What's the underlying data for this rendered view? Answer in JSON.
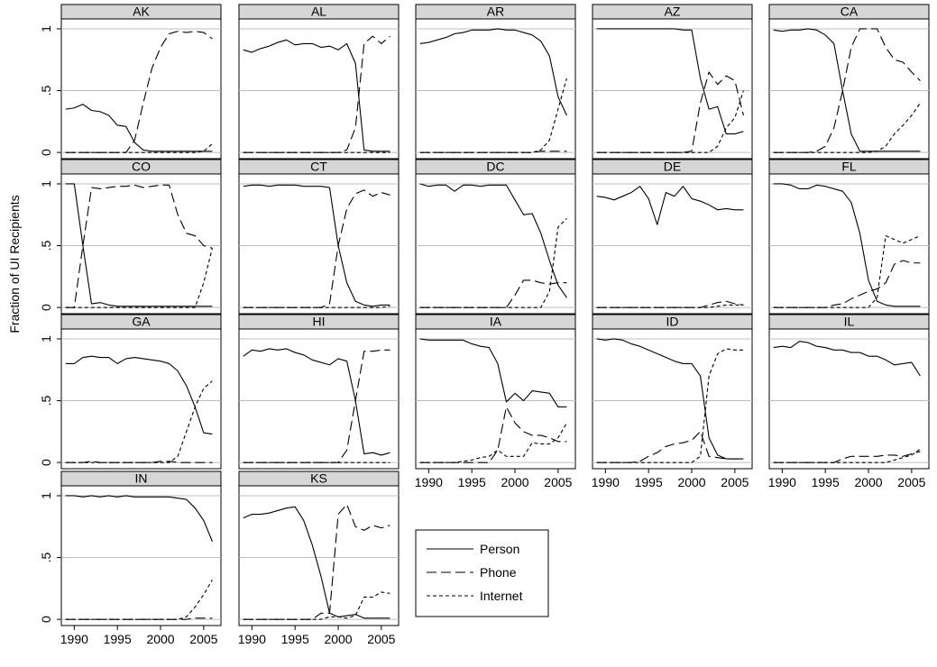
{
  "chart_data": {
    "type": "line",
    "ylabel": "Fraction of UI Recipients",
    "x_ticks": [
      "1990",
      "1995",
      "2000",
      "2005"
    ],
    "y_ticks": [
      "0",
      ".5",
      "1"
    ],
    "xlim": [
      1988.5,
      2007
    ],
    "ylim": [
      -0.05,
      1.08
    ],
    "grid": "horizontal",
    "legend_position": "right of bottom row",
    "legend": [
      {
        "name": "Person",
        "dash": "solid"
      },
      {
        "name": "Phone",
        "dash": "long-dash"
      },
      {
        "name": "Internet",
        "dash": "short-dash"
      }
    ],
    "x": [
      1989,
      1990,
      1991,
      1992,
      1993,
      1994,
      1995,
      1996,
      1997,
      1998,
      1999,
      2000,
      2001,
      2002,
      2003,
      2004,
      2005,
      2006
    ],
    "panels": [
      {
        "title": "AK",
        "series": {
          "Person": [
            0.35,
            0.36,
            0.39,
            0.34,
            0.33,
            0.3,
            0.22,
            0.21,
            0.08,
            0.02,
            0.01,
            0.01,
            0.01,
            0.01,
            0.01,
            0.01,
            0.01,
            0.01
          ],
          "Phone": [
            0,
            0,
            0,
            0,
            0,
            0,
            0,
            0,
            0.1,
            0.4,
            0.68,
            0.85,
            0.96,
            0.98,
            0.97,
            0.98,
            0.97,
            0.92
          ],
          "Internet": [
            0,
            0,
            0,
            0,
            0,
            0,
            0,
            0,
            0,
            0,
            0,
            0,
            0,
            0,
            0,
            0,
            0.01,
            0.07
          ]
        }
      },
      {
        "title": "AL",
        "series": {
          "Person": [
            0.83,
            0.81,
            0.84,
            0.86,
            0.89,
            0.91,
            0.87,
            0.88,
            0.88,
            0.85,
            0.86,
            0.83,
            0.88,
            0.72,
            0.02,
            0.01,
            0.01,
            0.01
          ],
          "Phone": [
            0,
            0,
            0,
            0,
            0,
            0,
            0,
            0,
            0,
            0,
            0,
            0,
            0.02,
            0.2,
            0.88,
            0.94,
            0.88,
            0.94
          ],
          "Internet": [
            0,
            0,
            0,
            0,
            0,
            0,
            0,
            0,
            0,
            0,
            0,
            0,
            0,
            0,
            0,
            0,
            0,
            0
          ]
        }
      },
      {
        "title": "AR",
        "series": {
          "Person": [
            0.88,
            0.89,
            0.91,
            0.93,
            0.96,
            0.97,
            0.99,
            0.99,
            0.99,
            1.0,
            0.99,
            0.99,
            0.97,
            0.95,
            0.9,
            0.78,
            0.45,
            0.3
          ],
          "Phone": [
            0,
            0,
            0,
            0,
            0,
            0,
            0,
            0,
            0,
            0,
            0,
            0,
            0,
            0,
            0.01,
            0.01,
            0.01,
            0.01
          ],
          "Internet": [
            0,
            0,
            0,
            0,
            0,
            0,
            0,
            0,
            0,
            0,
            0,
            0,
            0,
            0,
            0.02,
            0.1,
            0.35,
            0.6
          ]
        }
      },
      {
        "title": "AZ",
        "series": {
          "Person": [
            1.0,
            1.0,
            1.0,
            1.0,
            1.0,
            1.0,
            1.0,
            1.0,
            1.0,
            1.0,
            0.99,
            0.99,
            0.6,
            0.35,
            0.37,
            0.15,
            0.15,
            0.17
          ],
          "Phone": [
            0,
            0,
            0,
            0,
            0,
            0,
            0,
            0,
            0,
            0,
            0,
            0.01,
            0.4,
            0.65,
            0.55,
            0.62,
            0.58,
            0.3
          ],
          "Internet": [
            0,
            0,
            0,
            0,
            0,
            0,
            0,
            0,
            0,
            0,
            0,
            0,
            0,
            0,
            0.05,
            0.2,
            0.28,
            0.5
          ]
        }
      },
      {
        "title": "CA",
        "series": {
          "Person": [
            0.99,
            0.98,
            0.99,
            0.99,
            1.0,
            0.99,
            0.95,
            0.88,
            0.5,
            0.15,
            0.01,
            0.01,
            0.01,
            0.01,
            0.01,
            0.01,
            0.01,
            0.01
          ],
          "Phone": [
            0,
            0,
            0,
            0,
            0,
            0.01,
            0.05,
            0.2,
            0.5,
            0.85,
            1.0,
            1.0,
            1.0,
            0.85,
            0.75,
            0.73,
            0.65,
            0.58
          ],
          "Internet": [
            0,
            0,
            0,
            0,
            0,
            0,
            0,
            0,
            0,
            0,
            0,
            0,
            0.01,
            0.05,
            0.15,
            0.22,
            0.3,
            0.4
          ]
        }
      },
      {
        "title": "CO",
        "series": {
          "Person": [
            1.0,
            1.0,
            0.5,
            0.03,
            0.04,
            0.02,
            0.01,
            0.01,
            0.01,
            0.01,
            0.01,
            0.01,
            0.01,
            0.01,
            0.01,
            0.01,
            0.01,
            0.01
          ],
          "Phone": [
            0,
            0,
            0.5,
            0.97,
            0.96,
            0.97,
            0.98,
            0.98,
            0.99,
            0.97,
            0.98,
            0.99,
            0.99,
            0.75,
            0.6,
            0.58,
            0.5,
            0.48
          ],
          "Internet": [
            0,
            0,
            0,
            0,
            0,
            0,
            0,
            0,
            0,
            0,
            0,
            0,
            0,
            0,
            0,
            0,
            0.2,
            0.48
          ]
        }
      },
      {
        "title": "CT",
        "series": {
          "Person": [
            0.98,
            0.99,
            0.99,
            0.98,
            0.99,
            0.99,
            0.99,
            0.98,
            0.98,
            0.98,
            0.97,
            0.5,
            0.2,
            0.05,
            0.02,
            0.01,
            0.02,
            0.02
          ],
          "Phone": [
            0,
            0,
            0,
            0,
            0,
            0,
            0,
            0,
            0,
            0,
            0.03,
            0.5,
            0.8,
            0.92,
            0.95,
            0.9,
            0.93,
            0.91
          ],
          "Internet": [
            0,
            0,
            0,
            0,
            0,
            0,
            0,
            0,
            0,
            0,
            0,
            0,
            0,
            0,
            0,
            0,
            0,
            0.01
          ]
        }
      },
      {
        "title": "DC",
        "series": {
          "Person": [
            1.0,
            0.98,
            0.99,
            0.99,
            0.94,
            0.99,
            0.99,
            0.98,
            0.99,
            0.99,
            0.99,
            0.87,
            0.75,
            0.76,
            0.6,
            0.38,
            0.18,
            0.08
          ],
          "Phone": [
            0,
            0,
            0,
            0,
            0,
            0,
            0,
            0,
            0,
            0,
            0,
            0.1,
            0.22,
            0.22,
            0.2,
            0.19,
            0.2,
            0.2
          ],
          "Internet": [
            0,
            0,
            0,
            0,
            0,
            0,
            0,
            0,
            0,
            0,
            0,
            0,
            0,
            0,
            0,
            0.13,
            0.65,
            0.72
          ]
        }
      },
      {
        "title": "DE",
        "series": {
          "Person": [
            0.9,
            0.89,
            0.87,
            0.9,
            0.93,
            0.98,
            0.88,
            0.67,
            0.93,
            0.9,
            0.98,
            0.88,
            0.86,
            0.83,
            0.79,
            0.8,
            0.79,
            0.79
          ],
          "Phone": [
            0,
            0,
            0,
            0,
            0,
            0,
            0,
            0,
            0,
            0,
            0,
            0,
            0,
            0.02,
            0.04,
            0.05,
            0.03,
            0.02
          ],
          "Internet": [
            0,
            0,
            0,
            0,
            0,
            0,
            0,
            0,
            0,
            0,
            0,
            0,
            0,
            0,
            0.01,
            0.02,
            0.02,
            0.02
          ]
        }
      },
      {
        "title": "FL",
        "series": {
          "Person": [
            1.0,
            1.0,
            0.99,
            0.96,
            0.96,
            0.99,
            0.98,
            0.96,
            0.94,
            0.85,
            0.6,
            0.22,
            0.05,
            0.02,
            0.01,
            0.01,
            0.01,
            0.01
          ],
          "Phone": [
            0,
            0,
            0,
            0,
            0,
            0,
            0,
            0.02,
            0.03,
            0.07,
            0.1,
            0.13,
            0.15,
            0.2,
            0.35,
            0.38,
            0.36,
            0.36
          ],
          "Internet": [
            0,
            0,
            0,
            0,
            0,
            0,
            0,
            0,
            0,
            0,
            0,
            0,
            0.08,
            0.58,
            0.55,
            0.52,
            0.55,
            0.58
          ]
        }
      },
      {
        "title": "GA",
        "series": {
          "Person": [
            0.8,
            0.8,
            0.85,
            0.86,
            0.85,
            0.85,
            0.8,
            0.84,
            0.85,
            0.84,
            0.83,
            0.82,
            0.8,
            0.74,
            0.62,
            0.45,
            0.24,
            0.23
          ],
          "Phone": [
            0,
            0,
            0,
            0.01,
            0,
            0,
            0,
            0,
            0,
            0,
            0,
            0.01,
            0.01,
            0,
            0,
            0,
            0,
            0
          ],
          "Internet": [
            0,
            0,
            0,
            0,
            0,
            0,
            0,
            0,
            0,
            0,
            0,
            0,
            0,
            0.05,
            0.25,
            0.45,
            0.6,
            0.66
          ]
        }
      },
      {
        "title": "HI",
        "series": {
          "Person": [
            0.86,
            0.91,
            0.9,
            0.92,
            0.91,
            0.92,
            0.89,
            0.87,
            0.83,
            0.81,
            0.79,
            0.84,
            0.82,
            0.5,
            0.07,
            0.08,
            0.06,
            0.08
          ],
          "Phone": [
            0,
            0,
            0,
            0,
            0,
            0,
            0,
            0,
            0,
            0,
            0,
            0,
            0.1,
            0.5,
            0.9,
            0.9,
            0.91,
            0.91
          ],
          "Internet": [
            0,
            0,
            0,
            0,
            0,
            0,
            0,
            0,
            0,
            0,
            0,
            0,
            0,
            0,
            0,
            0,
            0,
            0
          ]
        }
      },
      {
        "title": "IA",
        "series": {
          "Person": [
            1.0,
            0.99,
            0.99,
            0.99,
            0.99,
            0.99,
            0.96,
            0.94,
            0.93,
            0.8,
            0.49,
            0.56,
            0.5,
            0.58,
            0.57,
            0.56,
            0.45,
            0.45
          ],
          "Phone": [
            0,
            0,
            0,
            0,
            0,
            0,
            0,
            0,
            0,
            0.1,
            0.45,
            0.32,
            0.25,
            0.22,
            0.22,
            0.2,
            0.17,
            0.17
          ],
          "Internet": [
            0,
            0,
            0,
            0,
            0,
            0.01,
            0.02,
            0.04,
            0.05,
            0.1,
            0.05,
            0.05,
            0.05,
            0.16,
            0.15,
            0.15,
            0.2,
            0.32
          ]
        }
      },
      {
        "title": "ID",
        "series": {
          "Person": [
            1.0,
            0.99,
            1.0,
            0.99,
            0.96,
            0.94,
            0.91,
            0.88,
            0.85,
            0.82,
            0.8,
            0.8,
            0.7,
            0.2,
            0.06,
            0.03,
            0.03,
            0.03
          ],
          "Phone": [
            0,
            0,
            0,
            0,
            0,
            0.01,
            0.05,
            0.08,
            0.13,
            0.15,
            0.16,
            0.18,
            0.25,
            0.05,
            0.04,
            0.03,
            0.03,
            0.03
          ],
          "Internet": [
            0,
            0,
            0,
            0,
            0,
            0,
            0,
            0,
            0,
            0,
            0,
            0,
            0.05,
            0.7,
            0.88,
            0.92,
            0.91,
            0.91
          ]
        }
      },
      {
        "title": "IL",
        "series": {
          "Person": [
            0.93,
            0.94,
            0.93,
            0.98,
            0.97,
            0.94,
            0.93,
            0.91,
            0.91,
            0.89,
            0.89,
            0.86,
            0.86,
            0.83,
            0.79,
            0.8,
            0.81,
            0.7
          ],
          "Phone": [
            0,
            0,
            0,
            0,
            0,
            0,
            0,
            0,
            0.03,
            0.05,
            0.05,
            0.05,
            0.05,
            0.06,
            0.06,
            0.05,
            0.07,
            0.09
          ],
          "Internet": [
            0,
            0,
            0,
            0,
            0,
            0,
            0,
            0,
            0,
            0,
            0,
            0,
            0,
            0,
            0.02,
            0.04,
            0.06,
            0.11
          ]
        }
      },
      {
        "title": "IN",
        "series": {
          "Person": [
            1.0,
            1.0,
            0.99,
            1.0,
            0.99,
            1.0,
            0.99,
            1.0,
            0.99,
            0.99,
            0.99,
            0.99,
            0.99,
            0.98,
            0.97,
            0.9,
            0.8,
            0.63
          ],
          "Phone": [
            0,
            0,
            0,
            0,
            0,
            0,
            0,
            0,
            0,
            0,
            0,
            0,
            0,
            0,
            0,
            0.01,
            0.01,
            0.01
          ],
          "Internet": [
            0,
            0,
            0,
            0,
            0,
            0,
            0,
            0,
            0,
            0,
            0,
            0,
            0,
            0,
            0.02,
            0.1,
            0.2,
            0.32
          ]
        }
      },
      {
        "title": "KS",
        "series": {
          "Person": [
            0.82,
            0.85,
            0.85,
            0.86,
            0.88,
            0.9,
            0.91,
            0.8,
            0.6,
            0.35,
            0.05,
            0.02,
            0.03,
            0.04,
            0.01,
            0.01,
            0.01,
            0.01
          ],
          "Phone": [
            0,
            0,
            0,
            0,
            0,
            0,
            0,
            0,
            0,
            0.05,
            0.05,
            0.85,
            0.93,
            0.75,
            0.72,
            0.76,
            0.74,
            0.76
          ],
          "Internet": [
            0,
            0,
            0,
            0,
            0,
            0,
            0,
            0,
            0,
            0,
            0.02,
            0.02,
            0.01,
            0.03,
            0.18,
            0.18,
            0.22,
            0.21
          ]
        }
      }
    ]
  }
}
